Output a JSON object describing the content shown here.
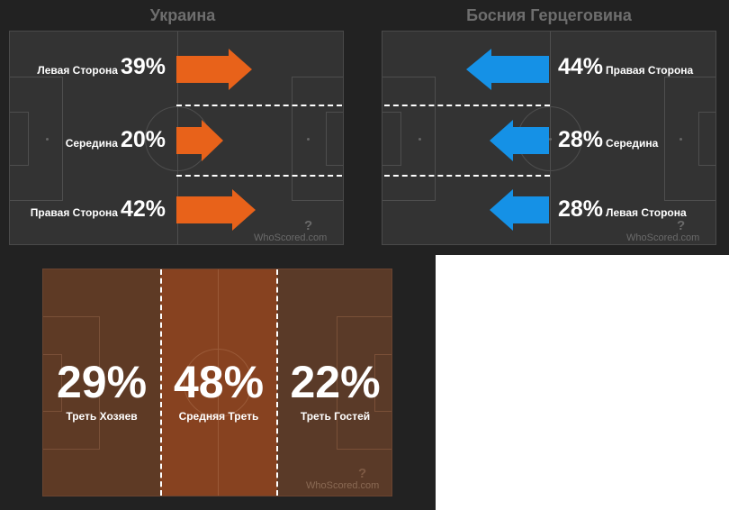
{
  "colors": {
    "background": "#222222",
    "pitch": "#333333",
    "home_arrow": "#e8621a",
    "away_arrow": "#1591e6",
    "zone_home": "#5e3a25",
    "zone_middle": "#874220",
    "zone_away": "#5a3a28"
  },
  "home": {
    "title": "Украина",
    "rows": [
      {
        "label": "Левая Сторона",
        "value": "39%"
      },
      {
        "label": "Середина",
        "value": "20%"
      },
      {
        "label": "Правая Сторона",
        "value": "42%"
      }
    ],
    "watermark": "WhoScored.com"
  },
  "away": {
    "title": "Босния Герцеговина",
    "rows": [
      {
        "label": "Правая Сторона",
        "value": "44%"
      },
      {
        "label": "Середина",
        "value": "28%"
      },
      {
        "label": "Левая Сторона",
        "value": "28%"
      }
    ],
    "watermark": "WhoScored.com"
  },
  "zones": {
    "items": [
      {
        "value": "29%",
        "label": "Треть Хозяев"
      },
      {
        "value": "48%",
        "label": "Средняя Треть"
      },
      {
        "value": "22%",
        "label": "Треть Гостей"
      }
    ],
    "watermark": "WhoScored.com"
  },
  "icons": {
    "home_arrows": "arrow-right-icon",
    "away_arrows": "arrow-left-icon",
    "logo": "whoscored-logo-icon"
  }
}
